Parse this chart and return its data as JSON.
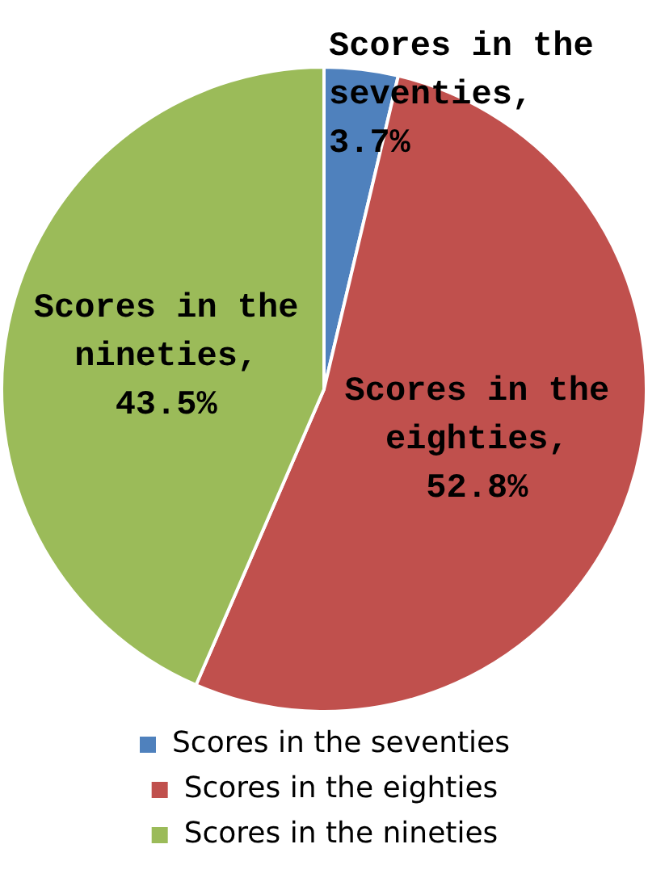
{
  "chart_data": {
    "type": "pie",
    "categories": [
      "Scores in the seventies",
      "Scores in the eighties",
      "Scores in the nineties"
    ],
    "values": [
      3.7,
      52.8,
      43.5
    ],
    "colors": [
      "#4f81bd",
      "#c0504d",
      "#9bbb59"
    ],
    "value_labels": [
      ", 3.7%",
      ", 52.8%",
      ", 43.5%"
    ],
    "legend": "bottom"
  }
}
